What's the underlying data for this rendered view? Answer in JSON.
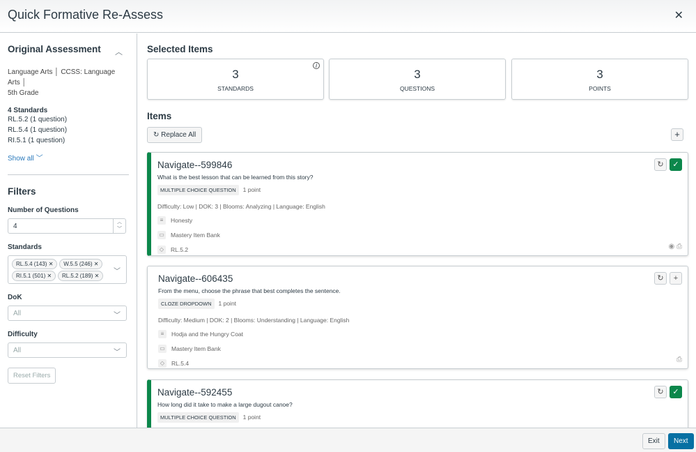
{
  "header": {
    "title": "Quick Formative Re-Assess",
    "close": "✕"
  },
  "sidebar": {
    "original_title": "Original Assessment",
    "meta": [
      "Language Arts",
      "CCSS: Language Arts",
      "5th Grade"
    ],
    "standards_count": "4 Standards",
    "standards": [
      "RL.5.2 (1 question)",
      "RL.5.4 (1 question)",
      "RI.5.1 (1 question)"
    ],
    "show_all": "Show all",
    "filters_title": "Filters",
    "num_questions_label": "Number of Questions",
    "num_questions_value": "4",
    "standards_label": "Standards",
    "standard_tags": [
      "RL.5.4 (143)",
      "W.5.5 (246)",
      "RI.5.1 (501)",
      "RL.5.2 (189)"
    ],
    "dok_label": "DoK",
    "dok_value": "All",
    "difficulty_label": "Difficulty",
    "difficulty_value": "All",
    "reset": "Reset Filters"
  },
  "main": {
    "selected_title": "Selected Items",
    "stats": [
      {
        "value": "3",
        "label": "STANDARDS"
      },
      {
        "value": "3",
        "label": "QUESTIONS"
      },
      {
        "value": "3",
        "label": "POINTS"
      }
    ],
    "items_title": "Items",
    "replace_all": "Replace All",
    "items": [
      {
        "title": "Navigate--599846",
        "question": "What is the best lesson that can be learned from this story?",
        "type": "MULTIPLE CHOICE QUESTION",
        "points": "1 point",
        "details": "Difficulty: Low  |  DOK: 3  |  Blooms: Analyzing  |  Language: English",
        "passage": "Honesty",
        "bank": "Mastery Item Bank",
        "standard": "RL.5.2",
        "selected": true
      },
      {
        "title": "Navigate--606435",
        "question": "From the menu, choose the phrase that best completes the sentence.",
        "type": "CLOZE DROPDOWN",
        "points": "1 point",
        "details": "Difficulty: Medium  |  DOK: 2  |  Blooms: Understanding  |  Language: English",
        "passage": "Hodja and the Hungry Coat",
        "bank": "Mastery Item Bank",
        "standard": "RL.5.4",
        "selected": false
      },
      {
        "title": "Navigate--592455",
        "question": "How long did it take to make a large dugout canoe?",
        "type": "MULTIPLE CHOICE QUESTION",
        "points": "1 point",
        "selected": true
      }
    ]
  },
  "footer": {
    "exit": "Exit",
    "next": "Next"
  },
  "colors": {
    "accent": "#0770a3",
    "selected": "#0b874b",
    "link": "#2b7abc"
  }
}
